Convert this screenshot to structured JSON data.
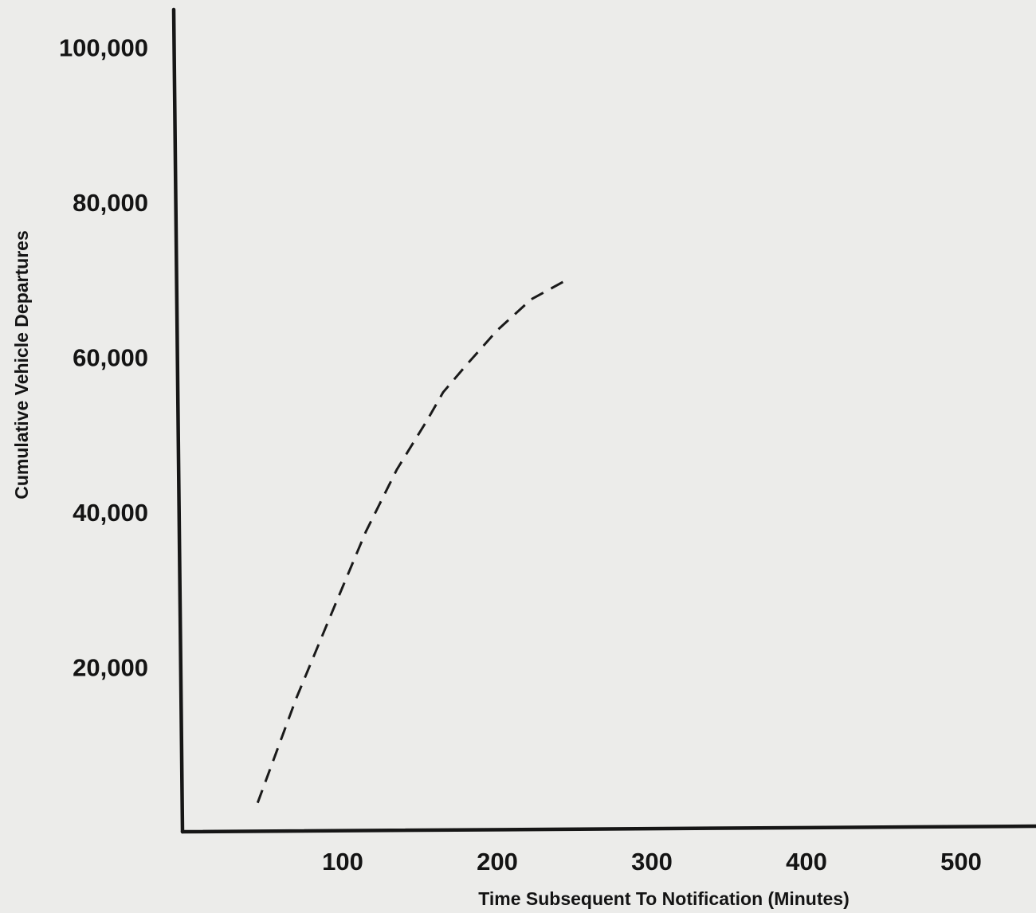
{
  "chart_data": {
    "type": "line",
    "title": "",
    "xlabel": "Time Subsequent To Notification (Minutes)",
    "ylabel": "Cumulative Vehicle Departures",
    "xlim": [
      0,
      550
    ],
    "ylim": [
      0,
      100000
    ],
    "x_ticks": [
      100,
      200,
      300,
      400,
      500
    ],
    "x_tick_labels": [
      "100",
      "200",
      "300",
      "400",
      "500"
    ],
    "y_ticks": [
      20000,
      40000,
      60000,
      80000,
      100000
    ],
    "y_tick_labels": [
      "20,000",
      "40,000",
      "60,000",
      "80,000",
      "100,000"
    ],
    "grid": false,
    "series": [
      {
        "line_style": "dashed",
        "color": "#1a1a1a",
        "x": [
          45,
          70,
          95,
          115,
          135,
          155,
          165,
          180,
          200,
          222,
          245
        ],
        "y": [
          2500,
          16000,
          28000,
          37500,
          45500,
          52000,
          55500,
          59000,
          63500,
          67500,
          70000
        ]
      }
    ]
  }
}
